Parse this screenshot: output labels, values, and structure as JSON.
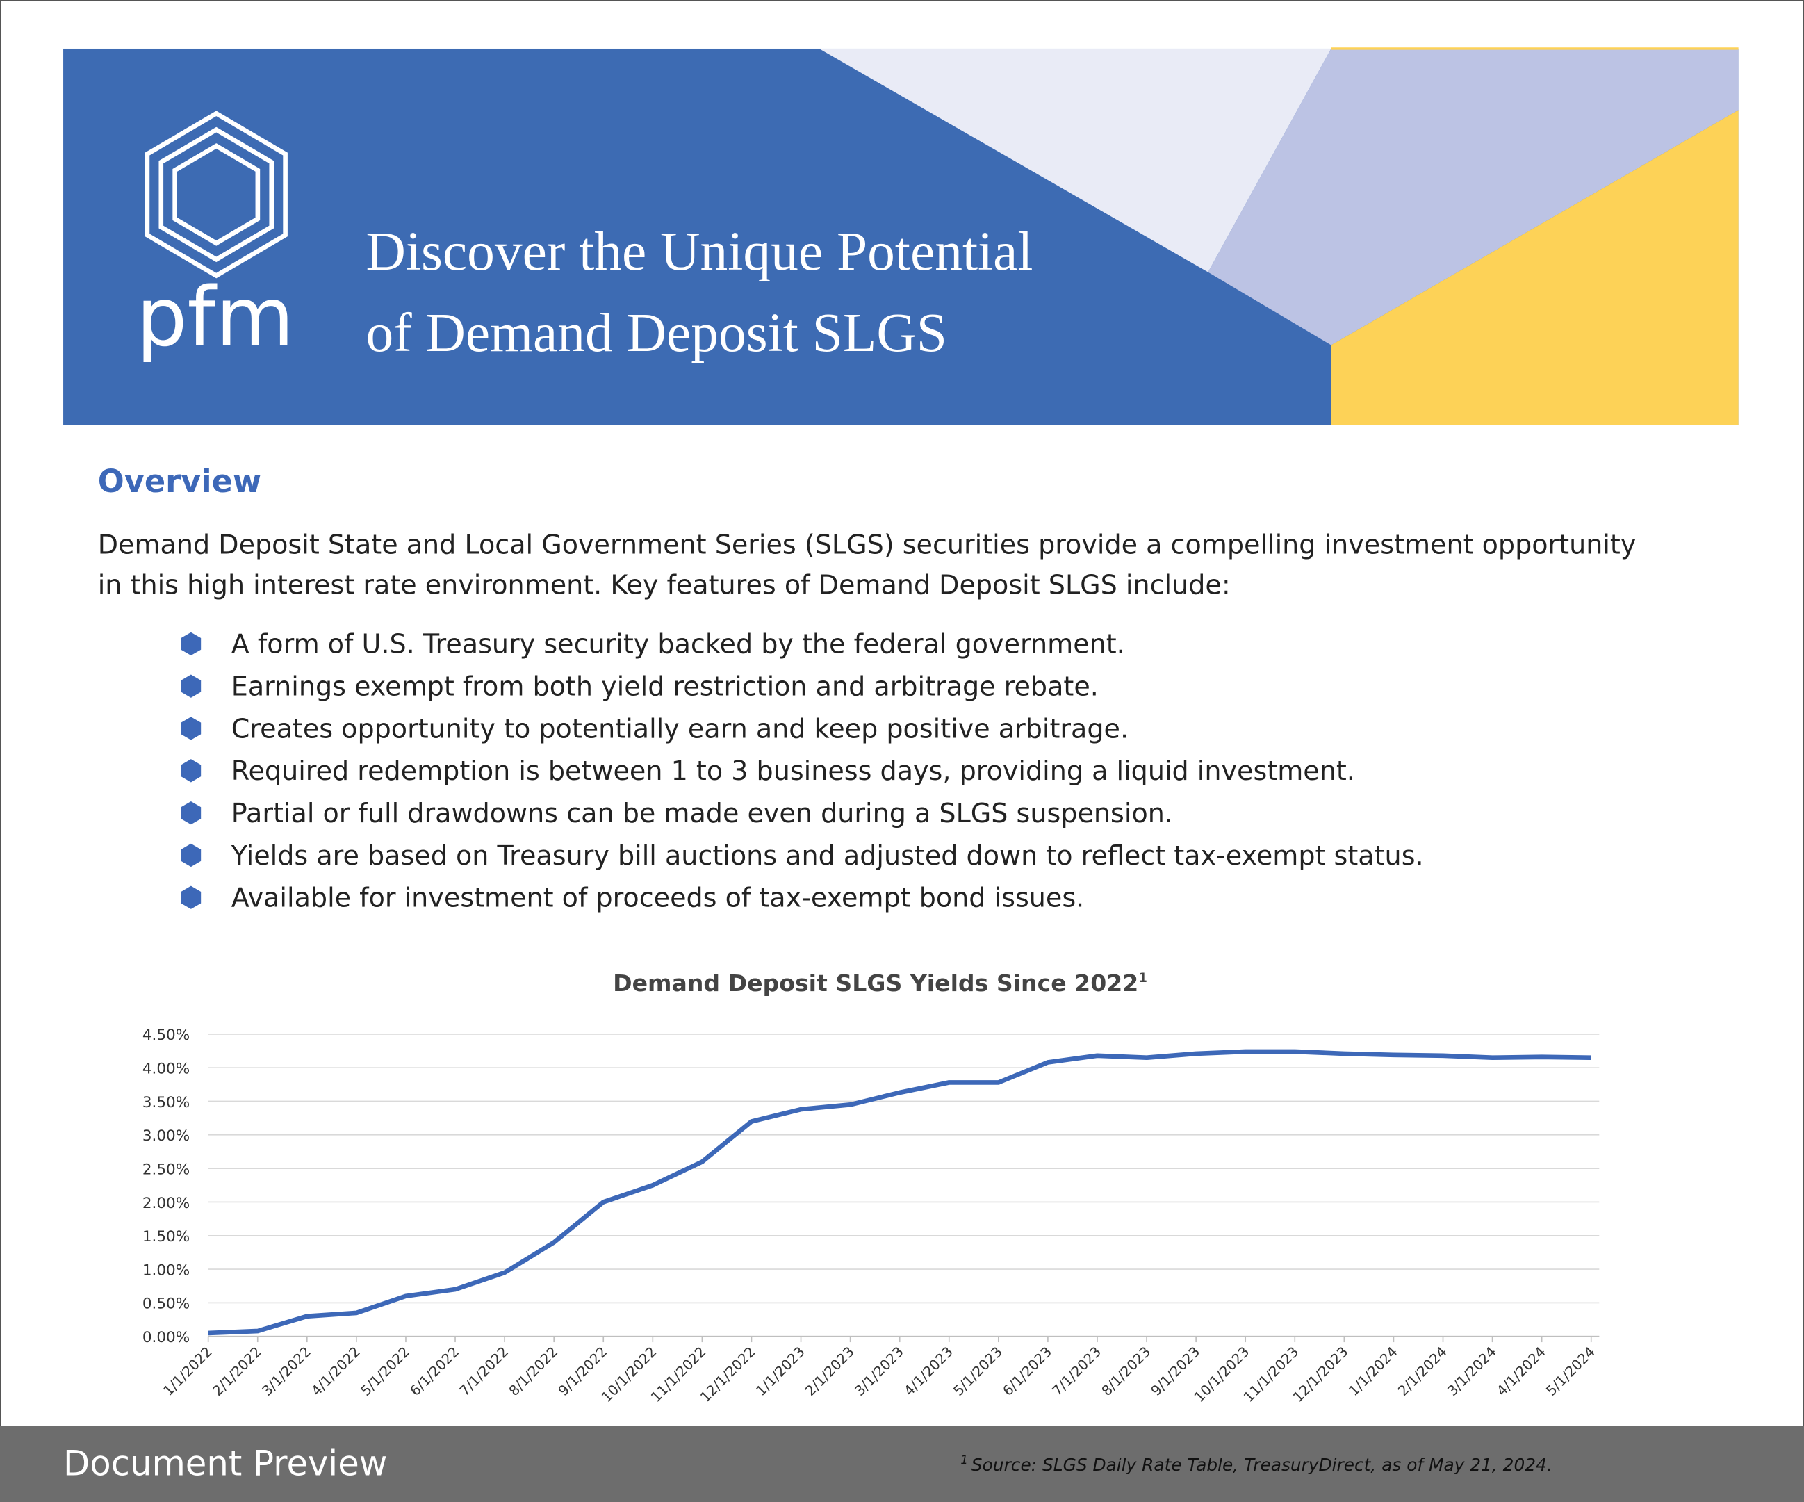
{
  "header": {
    "logo": "pfm",
    "title_lines": [
      "Discover the Unique Potential",
      "of Demand Deposit SLGS"
    ]
  },
  "overview": {
    "heading": "Overview",
    "paragraph_lines": [
      "Demand Deposit State and Local Government Series (SLGS) securities provide a compelling investment opportunity",
      "in this high interest rate environment. Key features of Demand Deposit SLGS include:"
    ],
    "bullets": [
      "A form of U.S. Treasury security backed by the federal government.",
      "Earnings exempt from both yield restriction and arbitrage rebate.",
      "Creates opportunity to potentially earn and keep positive arbitrage.",
      "Required redemption is between 1 to 3 business days, providing a liquid investment.",
      "Partial or full drawdowns can be made even during a SLGS suspension.",
      "Yields are based on Treasury bill auctions and adjusted down to reflect tax-exempt status.",
      "Available for investment of proceeds of tax-exempt bond issues."
    ]
  },
  "chart_data": {
    "type": "line",
    "title": "Demand Deposit SLGS Yields Since 2022",
    "title_note": "1",
    "categories": [
      "1/1/2022",
      "2/1/2022",
      "3/1/2022",
      "4/1/2022",
      "5/1/2022",
      "6/1/2022",
      "7/1/2022",
      "8/1/2022",
      "9/1/2022",
      "10/1/2022",
      "11/1/2022",
      "12/1/2022",
      "1/1/2023",
      "2/1/2023",
      "3/1/2023",
      "4/1/2023",
      "5/1/2023",
      "6/1/2023",
      "7/1/2023",
      "8/1/2023",
      "9/1/2023",
      "10/1/2023",
      "11/1/2023",
      "12/1/2023",
      "1/1/2024",
      "2/1/2024",
      "3/1/2024",
      "4/1/2024",
      "5/1/2024"
    ],
    "values": [
      0.05,
      0.08,
      0.3,
      0.35,
      0.6,
      0.7,
      0.95,
      1.4,
      2.0,
      2.25,
      2.6,
      3.2,
      3.38,
      3.45,
      3.63,
      3.78,
      3.78,
      4.08,
      4.18,
      4.15,
      4.21,
      4.24,
      4.24,
      4.21,
      4.19,
      4.18,
      4.15,
      4.16,
      4.15
    ],
    "color": "#3d68b8",
    "ylim": [
      0,
      4.5
    ],
    "yticks": [
      {
        "value": 0,
        "label": "0.00%"
      },
      {
        "value": 0.5,
        "label": "0.50%"
      },
      {
        "value": 1,
        "label": "1.00%"
      },
      {
        "value": 1.5,
        "label": "1.50%"
      },
      {
        "value": 2,
        "label": "2.00%"
      },
      {
        "value": 2.5,
        "label": "2.50%"
      },
      {
        "value": 3,
        "label": "3.00%"
      },
      {
        "value": 3.5,
        "label": "3.50%"
      },
      {
        "value": 4,
        "label": "4.00%"
      },
      {
        "value": 4.5,
        "label": "4.50%"
      }
    ],
    "grid": true
  },
  "footnote": {
    "mark": "1",
    "text": "Source: SLGS Daily Rate Table, TreasuryDirect, as of May 21, 2024."
  },
  "preview_bar": {
    "label": "Document Preview"
  }
}
